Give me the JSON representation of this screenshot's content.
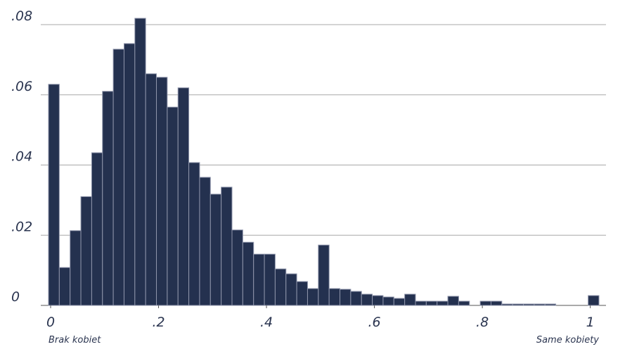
{
  "chart_data": {
    "type": "histogram",
    "bins": [
      0,
      0.02,
      0.04,
      0.06,
      0.08,
      0.1,
      0.12,
      0.14,
      0.16,
      0.18,
      0.2,
      0.22,
      0.24,
      0.26,
      0.28,
      0.3,
      0.32,
      0.34,
      0.36,
      0.38,
      0.4,
      0.42,
      0.44,
      0.46,
      0.48,
      0.5,
      0.52,
      0.54,
      0.56,
      0.58,
      0.6,
      0.62,
      0.64,
      0.66,
      0.68,
      0.7,
      0.72,
      0.74,
      0.76,
      0.78,
      0.8,
      0.82,
      0.84,
      0.86,
      0.88,
      0.9,
      0.92,
      0.94,
      0.96,
      0.98,
      1,
      1.02
    ],
    "counts": [
      0.063,
      0.0108,
      0.0213,
      0.031,
      0.0435,
      0.061,
      0.073,
      0.0746,
      0.0818,
      0.066,
      0.065,
      0.0565,
      0.062,
      0.0407,
      0.0365,
      0.0317,
      0.0337,
      0.0215,
      0.018,
      0.0146,
      0.0146,
      0.0104,
      0.009,
      0.0068,
      0.0048,
      0.0172,
      0.0048,
      0.0046,
      0.004,
      0.0032,
      0.0028,
      0.0024,
      0.002,
      0.0032,
      0.0012,
      0.0012,
      0.0012,
      0.0026,
      0.0012,
      0,
      0.0012,
      0.0012,
      0.0004,
      0.0004,
      0.0004,
      0.0004,
      0.0004,
      0,
      0,
      0,
      0.0028
    ],
    "color": "#24314f",
    "xlim": [
      0,
      1.02
    ],
    "ylim": [
      0,
      0.08
    ],
    "xticks": [
      0,
      {
        "value": 0.2,
        "label": ".2"
      },
      {
        "value": 0.4,
        "label": ".4"
      },
      {
        "value": 0.6,
        "label": ".6"
      },
      {
        "value": 0.8,
        "label": ".8"
      },
      1
    ],
    "yticks": [
      0,
      {
        "value": 0.02,
        "label": ".02"
      },
      {
        "value": 0.04,
        "label": ".04"
      },
      {
        "value": 0.06,
        "label": ".06"
      },
      {
        "value": 0.08,
        "label": ".08"
      }
    ],
    "grid": true,
    "x_left_annotation": "Brak kobiet",
    "x_right_annotation": "Same kobiety"
  }
}
